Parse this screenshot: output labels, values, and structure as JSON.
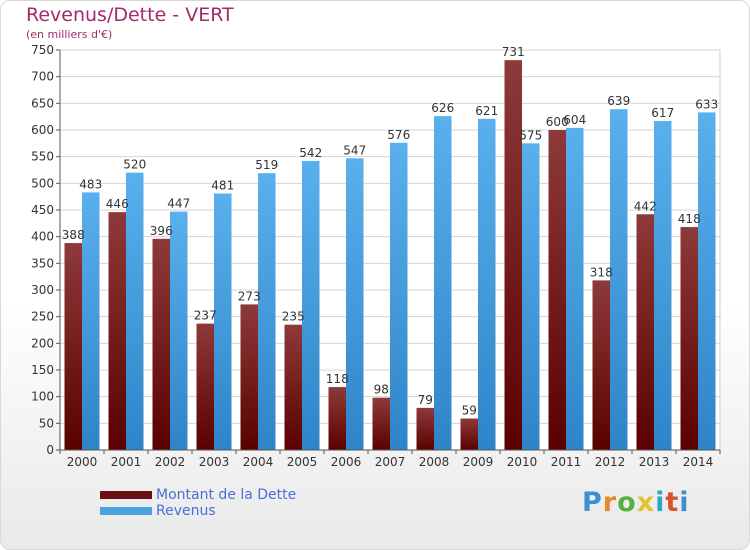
{
  "header": {
    "title": "Revenus/Dette - VERT",
    "subtitle": "(en milliers d'€)"
  },
  "legend": {
    "items": [
      {
        "label": "Montant de la Dette",
        "color": "#6b0f14"
      },
      {
        "label": "Revenus",
        "color": "#4aa3e0"
      }
    ]
  },
  "logo": {
    "text": "Proxiti"
  },
  "chart_data": {
    "type": "bar",
    "title": "Revenus/Dette - VERT",
    "ylabel": "(en milliers d'€)",
    "ylim": [
      0,
      750
    ],
    "yticks": [
      0,
      50,
      100,
      150,
      200,
      250,
      300,
      350,
      400,
      450,
      500,
      550,
      600,
      650,
      700,
      750
    ],
    "grid": true,
    "legend_position": "bottom-left",
    "categories": [
      "2000",
      "2001",
      "2002",
      "2003",
      "2004",
      "2005",
      "2006",
      "2007",
      "2008",
      "2009",
      "2010",
      "2011",
      "2012",
      "2013",
      "2014"
    ],
    "series": [
      {
        "name": "Montant de la Dette",
        "color": "#6b0f14",
        "values": [
          388,
          446,
          396,
          237,
          273,
          235,
          118,
          98,
          79,
          59,
          731,
          600,
          318,
          442,
          418
        ]
      },
      {
        "name": "Revenus",
        "color": "#4aa3e0",
        "values": [
          483,
          520,
          447,
          481,
          519,
          542,
          547,
          576,
          626,
          621,
          575,
          604,
          639,
          617,
          633
        ]
      }
    ]
  }
}
